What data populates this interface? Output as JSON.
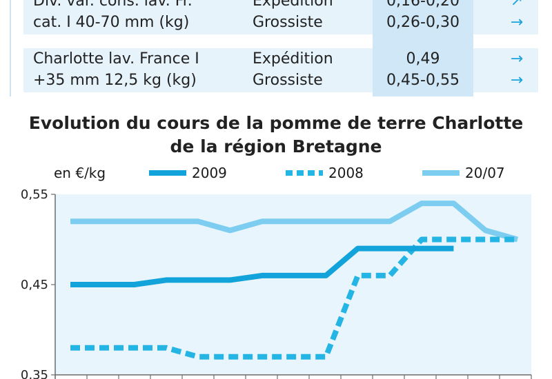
{
  "table": {
    "rows": [
      {
        "product_lines": [
          "Div. var. cons. lav. Fr.",
          "cat. I 40-70 mm (kg)"
        ],
        "stages": [
          "Expédition",
          "Grossiste"
        ],
        "prices": [
          "0,16-0,20",
          "0,26-0,30"
        ],
        "trends": [
          "up-right-arrow",
          "right-arrow"
        ]
      },
      {
        "product_lines": [
          "Charlotte lav. France  I",
          "+35 mm 12,5 kg (kg)"
        ],
        "stages": [
          "Expédition",
          "Grossiste"
        ],
        "prices": [
          "0,49",
          "0,45-0,55"
        ],
        "trends": [
          "right-arrow",
          "right-arrow"
        ]
      }
    ]
  },
  "chart_data": {
    "type": "line",
    "title_lines": [
      "Evolution du cours de la pomme de terre Charlotte",
      "de la région Bretagne"
    ],
    "unit_label": "en €/kg",
    "ylim": [
      0.35,
      0.55
    ],
    "ytick_labels": [
      "0,55",
      "0,45",
      "0,35"
    ],
    "yticks": [
      0.55,
      0.45,
      0.35
    ],
    "x": [
      1,
      2,
      3,
      4,
      5,
      6,
      7,
      8,
      9,
      10,
      11,
      12,
      13,
      14,
      15
    ],
    "legend_placement": "top",
    "series": [
      {
        "name": "2009",
        "style": "solid",
        "color": "#12a3db",
        "values": [
          0.45,
          0.45,
          0.45,
          0.455,
          0.455,
          0.455,
          0.46,
          0.46,
          0.46,
          0.49,
          0.49,
          0.49,
          0.49,
          null,
          null
        ]
      },
      {
        "name": "2008",
        "style": "dashed",
        "color": "#25b5e4",
        "values": [
          0.38,
          0.38,
          0.38,
          0.38,
          0.37,
          0.37,
          0.37,
          0.37,
          0.37,
          0.46,
          0.46,
          0.5,
          0.5,
          0.5,
          0.5
        ]
      },
      {
        "name": "20/07",
        "style": "solid",
        "color": "#7dcdf0",
        "values": [
          0.52,
          0.52,
          0.52,
          0.52,
          0.52,
          0.51,
          0.52,
          0.52,
          0.52,
          0.52,
          0.52,
          0.54,
          0.54,
          0.51,
          0.5
        ]
      }
    ]
  }
}
